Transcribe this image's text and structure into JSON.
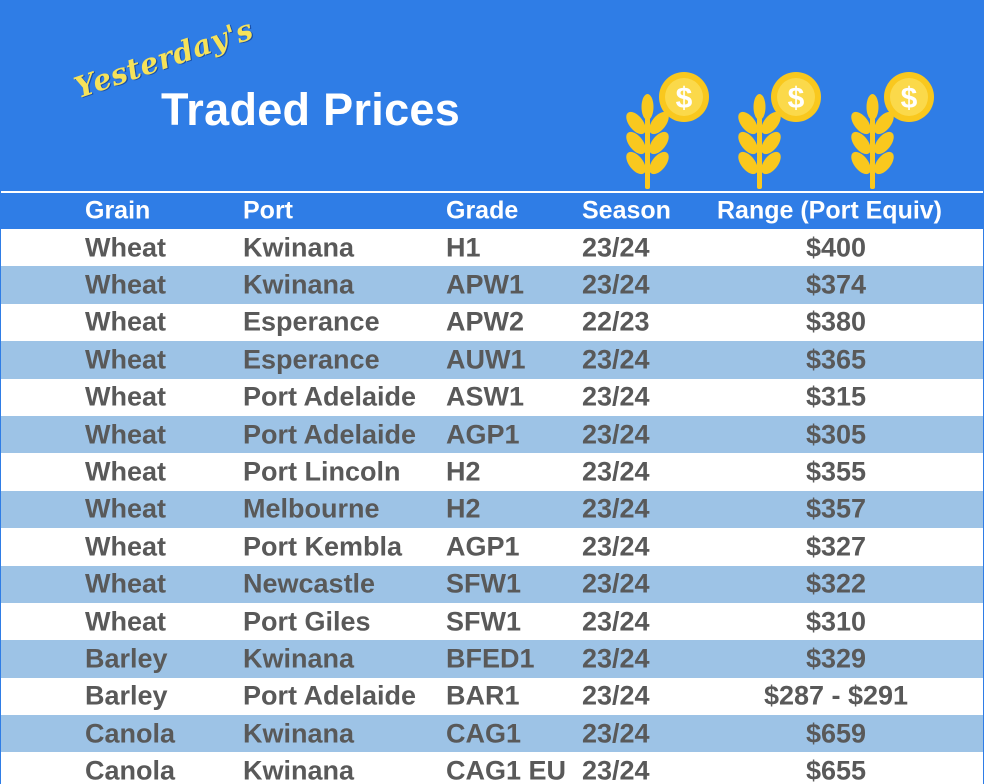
{
  "banner": {
    "script_text": "Yesterday's",
    "title": "Traded Prices",
    "icons": [
      "wheat-dollar-icon",
      "wheat-dollar-icon",
      "wheat-dollar-icon"
    ],
    "currency_symbol": "$"
  },
  "colors": {
    "header_blue": "#2f7de6",
    "row_stripe": "#9dc3e6",
    "text_gray": "#595959",
    "accent_yellow": "#f6e25a",
    "coin_gold": "#f9c81e"
  },
  "table": {
    "headers": {
      "grain": "Grain",
      "port": "Port",
      "grade": "Grade",
      "season": "Season",
      "range": "Range (Port Equiv)"
    },
    "rows": [
      {
        "grain": "Wheat",
        "port": "Kwinana",
        "grade": "H1",
        "season": "23/24",
        "range": "$400"
      },
      {
        "grain": "Wheat",
        "port": "Kwinana",
        "grade": "APW1",
        "season": "23/24",
        "range": "$374"
      },
      {
        "grain": "Wheat",
        "port": "Esperance",
        "grade": "APW2",
        "season": "22/23",
        "range": "$380"
      },
      {
        "grain": "Wheat",
        "port": "Esperance",
        "grade": "AUW1",
        "season": "23/24",
        "range": "$365"
      },
      {
        "grain": "Wheat",
        "port": "Port Adelaide",
        "grade": "ASW1",
        "season": "23/24",
        "range": "$315"
      },
      {
        "grain": "Wheat",
        "port": "Port Adelaide",
        "grade": "AGP1",
        "season": "23/24",
        "range": "$305"
      },
      {
        "grain": "Wheat",
        "port": "Port Lincoln",
        "grade": "H2",
        "season": "23/24",
        "range": "$355"
      },
      {
        "grain": "Wheat",
        "port": "Melbourne",
        "grade": "H2",
        "season": "23/24",
        "range": "$357"
      },
      {
        "grain": "Wheat",
        "port": "Port Kembla",
        "grade": "AGP1",
        "season": "23/24",
        "range": "$327"
      },
      {
        "grain": "Wheat",
        "port": "Newcastle",
        "grade": "SFW1",
        "season": "23/24",
        "range": "$322"
      },
      {
        "grain": "Wheat",
        "port": "Port Giles",
        "grade": "SFW1",
        "season": "23/24",
        "range": "$310"
      },
      {
        "grain": "Barley",
        "port": "Kwinana",
        "grade": "BFED1",
        "season": "23/24",
        "range": "$329"
      },
      {
        "grain": "Barley",
        "port": "Port Adelaide",
        "grade": "BAR1",
        "season": "23/24",
        "range": "$287 - $291"
      },
      {
        "grain": "Canola",
        "port": "Kwinana",
        "grade": "CAG1",
        "season": "23/24",
        "range": "$659"
      },
      {
        "grain": "Canola",
        "port": "Kwinana",
        "grade": "CAG1 EU",
        "season": "23/24",
        "range": "$655"
      }
    ]
  }
}
